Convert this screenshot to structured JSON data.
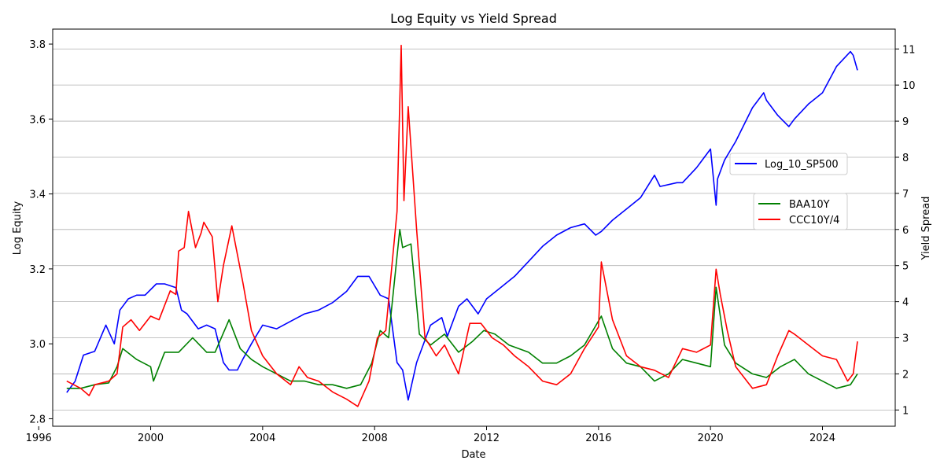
{
  "chart_data": {
    "type": "line",
    "title": "Log Equity vs Yield Spread",
    "xlabel": "Date",
    "ylabel_left": "Log Equity",
    "ylabel_right": "Yield Spread",
    "xlim": [
      1996.5,
      2026.6
    ],
    "ylim_left": [
      2.78,
      3.84
    ],
    "ylim_right": [
      0.55,
      11.55
    ],
    "x_ticks": [
      1996,
      2000,
      2004,
      2008,
      2012,
      2016,
      2020,
      2024
    ],
    "y_ticks_left": [
      2.8,
      3.0,
      3.2,
      3.4,
      3.6,
      3.8
    ],
    "y_ticks_right": [
      1,
      2,
      3,
      4,
      5,
      6,
      7,
      8,
      9,
      10,
      11
    ],
    "grid": "horizontal lines at right-axis ticks",
    "legend_left_placement": "center-right",
    "legend_right_placement": "center-right",
    "colors": {
      "Log_10_SP500": "#0000ff",
      "BAA10Y": "#008000",
      "CCC10Y/4": "#ff0000"
    },
    "series": [
      {
        "name": "Log_10_SP500",
        "axis": "left",
        "x": [
          1997.0,
          1997.3,
          1997.6,
          1998.0,
          1998.4,
          1998.7,
          1998.9,
          1999.2,
          1999.5,
          1999.8,
          2000.2,
          2000.5,
          2000.9,
          2001.1,
          2001.3,
          2001.7,
          2002.0,
          2002.3,
          2002.6,
          2002.8,
          2003.1,
          2003.3,
          2003.6,
          2004.0,
          2004.5,
          2005.0,
          2005.5,
          2006.0,
          2006.5,
          2007.0,
          2007.4,
          2007.8,
          2008.2,
          2008.5,
          2008.8,
          2009.0,
          2009.2,
          2009.5,
          2010.0,
          2010.4,
          2010.6,
          2011.0,
          2011.3,
          2011.7,
          2012.0,
          2012.5,
          2013.0,
          2013.5,
          2014.0,
          2014.5,
          2015.0,
          2015.5,
          2015.9,
          2016.1,
          2016.5,
          2017.0,
          2017.5,
          2018.0,
          2018.2,
          2018.8,
          2019.0,
          2019.5,
          2020.0,
          2020.2,
          2020.25,
          2020.5,
          2020.9,
          2021.5,
          2021.9,
          2022.0,
          2022.4,
          2022.8,
          2023.0,
          2023.5,
          2024.0,
          2024.5,
          2025.0,
          2025.1,
          2025.25
        ],
        "y": [
          2.87,
          2.9,
          2.97,
          2.98,
          3.05,
          3.0,
          3.09,
          3.12,
          3.13,
          3.13,
          3.16,
          3.16,
          3.15,
          3.09,
          3.08,
          3.04,
          3.05,
          3.04,
          2.95,
          2.93,
          2.93,
          2.96,
          3.0,
          3.05,
          3.04,
          3.06,
          3.08,
          3.09,
          3.11,
          3.14,
          3.18,
          3.18,
          3.13,
          3.12,
          2.95,
          2.93,
          2.85,
          2.95,
          3.05,
          3.07,
          3.02,
          3.1,
          3.12,
          3.08,
          3.12,
          3.15,
          3.18,
          3.22,
          3.26,
          3.29,
          3.31,
          3.32,
          3.29,
          3.3,
          3.33,
          3.36,
          3.39,
          3.45,
          3.42,
          3.43,
          3.43,
          3.47,
          3.52,
          3.37,
          3.44,
          3.49,
          3.54,
          3.63,
          3.67,
          3.65,
          3.61,
          3.58,
          3.6,
          3.64,
          3.67,
          3.74,
          3.78,
          3.77,
          3.73
        ]
      },
      {
        "name": "BAA10Y",
        "axis": "right",
        "x": [
          1997.0,
          1997.5,
          1998.0,
          1998.5,
          1998.8,
          1999.0,
          1999.5,
          2000.0,
          2000.1,
          2000.5,
          2001.0,
          2001.5,
          2002.0,
          2002.3,
          2002.8,
          2003.2,
          2003.6,
          2004.0,
          2004.5,
          2005.0,
          2005.5,
          2006.0,
          2006.5,
          2007.0,
          2007.5,
          2007.9,
          2008.2,
          2008.5,
          2008.9,
          2009.0,
          2009.3,
          2009.6,
          2010.0,
          2010.5,
          2011.0,
          2011.5,
          2011.9,
          2012.3,
          2012.8,
          2013.5,
          2014.0,
          2014.5,
          2015.0,
          2015.5,
          2016.1,
          2016.5,
          2017.0,
          2017.5,
          2018.0,
          2018.5,
          2019.0,
          2019.5,
          2020.0,
          2020.2,
          2020.5,
          2020.9,
          2021.5,
          2022.0,
          2022.5,
          2023.0,
          2023.5,
          2024.0,
          2024.5,
          2025.0,
          2025.25
        ],
        "y": [
          1.6,
          1.6,
          1.7,
          1.75,
          2.2,
          2.7,
          2.4,
          2.2,
          1.8,
          2.6,
          2.6,
          3.0,
          2.6,
          2.6,
          3.5,
          2.7,
          2.4,
          2.2,
          2.0,
          1.8,
          1.8,
          1.7,
          1.7,
          1.6,
          1.7,
          2.3,
          3.2,
          3.0,
          6.0,
          5.5,
          5.6,
          3.1,
          2.8,
          3.1,
          2.6,
          2.9,
          3.2,
          3.1,
          2.8,
          2.6,
          2.3,
          2.3,
          2.5,
          2.8,
          3.6,
          2.7,
          2.3,
          2.2,
          1.8,
          2.0,
          2.4,
          2.3,
          2.2,
          4.4,
          2.8,
          2.3,
          2.0,
          1.9,
          2.2,
          2.4,
          2.0,
          1.8,
          1.6,
          1.7,
          2.0
        ]
      },
      {
        "name": "CCC10Y/4",
        "axis": "right",
        "x": [
          1997.0,
          1997.5,
          1997.8,
          1998.0,
          1998.5,
          1998.8,
          1999.0,
          1999.3,
          1999.6,
          2000.0,
          2000.3,
          2000.7,
          2000.9,
          2001.0,
          2001.2,
          2001.35,
          2001.6,
          2001.8,
          2001.9,
          2002.2,
          2002.4,
          2002.6,
          2002.9,
          2003.3,
          2003.6,
          2004.0,
          2004.5,
          2005.0,
          2005.3,
          2005.6,
          2006.0,
          2006.5,
          2007.0,
          2007.4,
          2007.8,
          2008.1,
          2008.4,
          2008.8,
          2008.95,
          2009.05,
          2009.2,
          2009.5,
          2009.8,
          2010.2,
          2010.5,
          2011.0,
          2011.4,
          2011.8,
          2012.2,
          2012.6,
          2013.0,
          2013.5,
          2014.0,
          2014.5,
          2015.0,
          2015.5,
          2016.0,
          2016.1,
          2016.5,
          2017.0,
          2017.5,
          2018.0,
          2018.5,
          2019.0,
          2019.5,
          2020.0,
          2020.2,
          2020.35,
          2020.6,
          2020.9,
          2021.5,
          2022.0,
          2022.4,
          2022.8,
          2023.0,
          2023.5,
          2024.0,
          2024.5,
          2024.9,
          2025.1,
          2025.25
        ],
        "y": [
          1.8,
          1.6,
          1.4,
          1.7,
          1.8,
          2.0,
          3.3,
          3.5,
          3.2,
          3.6,
          3.5,
          4.3,
          4.2,
          5.4,
          5.5,
          6.5,
          5.5,
          5.9,
          6.2,
          5.8,
          4.0,
          5.0,
          6.1,
          4.5,
          3.2,
          2.5,
          2.0,
          1.7,
          2.2,
          1.9,
          1.8,
          1.5,
          1.3,
          1.1,
          1.8,
          3.0,
          3.2,
          6.5,
          11.1,
          6.8,
          9.4,
          6.0,
          3.0,
          2.5,
          2.8,
          2.0,
          3.4,
          3.4,
          3.0,
          2.8,
          2.5,
          2.2,
          1.8,
          1.7,
          2.0,
          2.7,
          3.3,
          5.1,
          3.5,
          2.5,
          2.2,
          2.1,
          1.9,
          2.7,
          2.6,
          2.8,
          4.9,
          4.2,
          3.2,
          2.2,
          1.6,
          1.7,
          2.5,
          3.2,
          3.1,
          2.8,
          2.5,
          2.4,
          1.8,
          2.0,
          2.9
        ]
      }
    ]
  }
}
